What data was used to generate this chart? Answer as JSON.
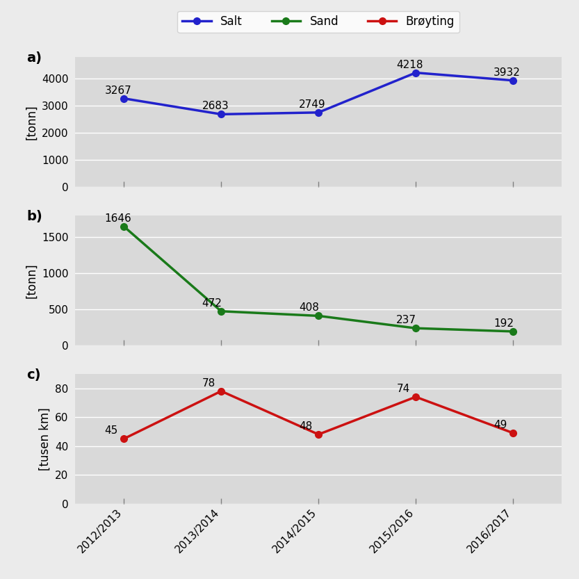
{
  "years": [
    "2012/2013",
    "2013/2014",
    "2014/2015",
    "2015/2016",
    "2016/2017"
  ],
  "salt_values": [
    3267,
    2683,
    2749,
    4218,
    3932
  ],
  "sand_values": [
    1646,
    472,
    408,
    237,
    192
  ],
  "broyting_values": [
    45,
    78,
    48,
    74,
    49
  ],
  "salt_color": "#2222cc",
  "sand_color": "#1a7a1a",
  "broyting_color": "#cc1111",
  "legend_labels": [
    "Salt",
    "Sand",
    "Brøyting"
  ],
  "ylabel_a": "[tonn]",
  "ylabel_b": "[tonn]",
  "ylabel_c": "[tusen km]",
  "panel_labels": [
    "a)",
    "b)",
    "c)"
  ],
  "salt_ylim": [
    0,
    4800
  ],
  "sand_ylim": [
    0,
    1800
  ],
  "broyting_ylim": [
    0,
    90
  ],
  "salt_yticks": [
    0,
    1000,
    2000,
    3000,
    4000
  ],
  "sand_yticks": [
    0,
    500,
    1000,
    1500
  ],
  "broyting_yticks": [
    0,
    20,
    40,
    60,
    80
  ],
  "bg_color": "#d9d9d9",
  "fig_bg": "#ebebeb",
  "linewidth": 2.5,
  "markersize": 7,
  "font_size": 12,
  "label_font_size": 11,
  "tick_font_size": 11,
  "panel_label_size": 14
}
